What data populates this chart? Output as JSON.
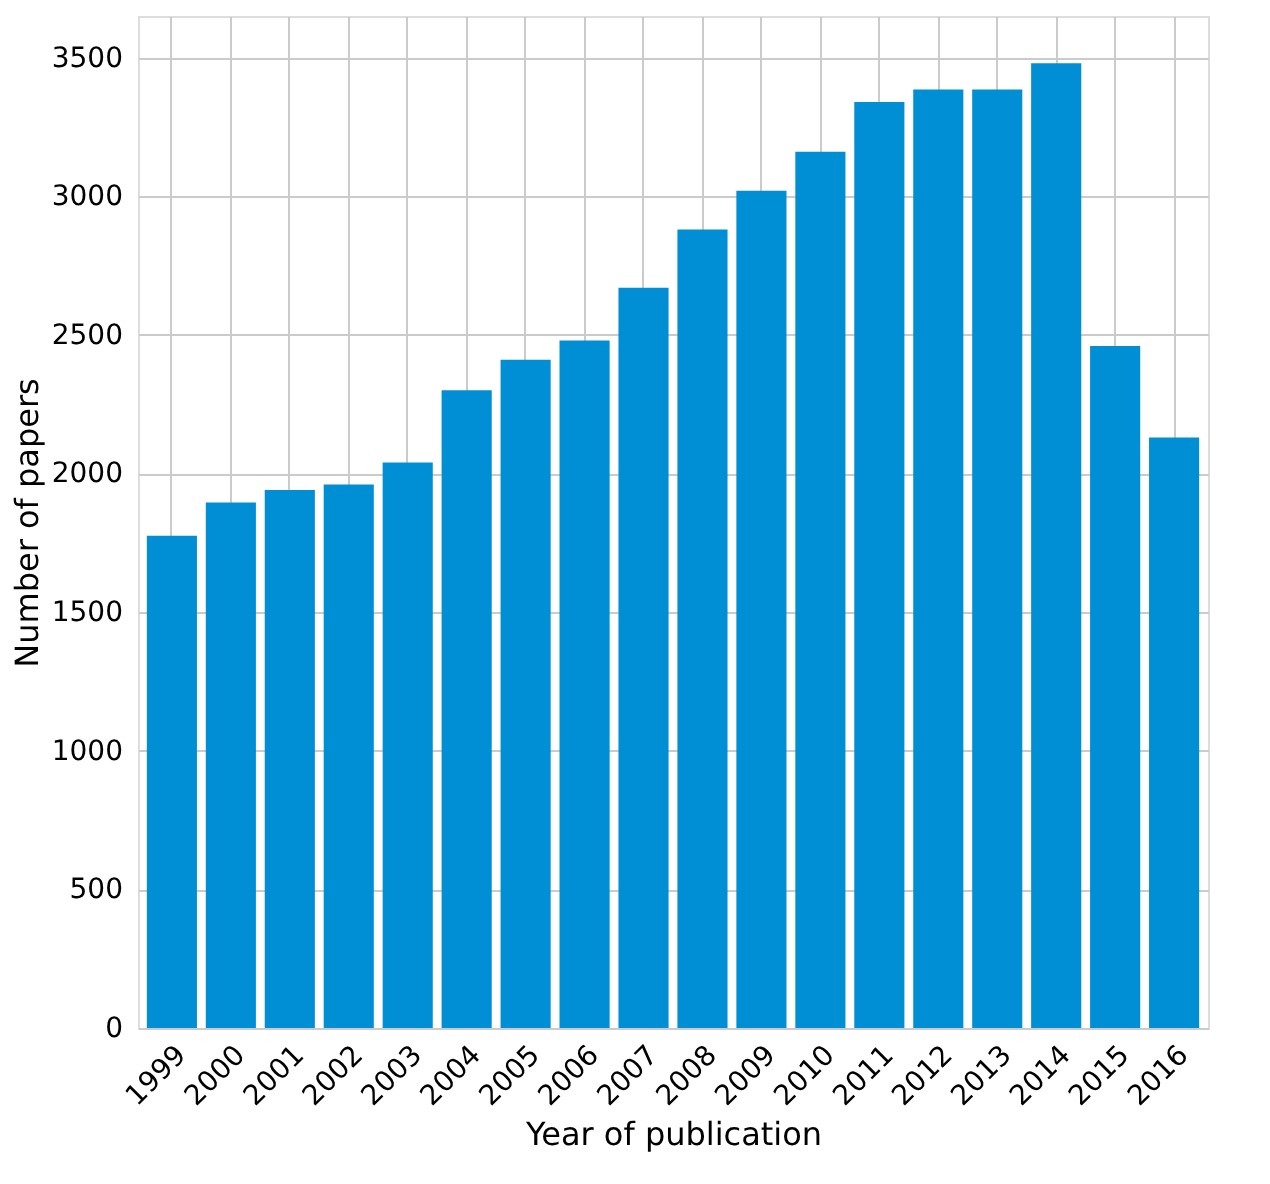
{
  "chart_data": {
    "type": "bar",
    "xlabel": "Year of publication",
    "ylabel": "Number of papers",
    "categories": [
      "1999",
      "2000",
      "2001",
      "2002",
      "2003",
      "2004",
      "2005",
      "2006",
      "2007",
      "2008",
      "2009",
      "2010",
      "2011",
      "2012",
      "2013",
      "2014",
      "2015",
      "2016"
    ],
    "values": [
      1775,
      1895,
      1940,
      1960,
      2040,
      2300,
      2410,
      2480,
      2670,
      2880,
      3020,
      3160,
      3340,
      3385,
      3385,
      3480,
      2460,
      2130
    ],
    "color": "#008fd5",
    "ylim": [
      0,
      3650
    ],
    "yticks": [
      0,
      500,
      1000,
      1500,
      2000,
      2500,
      3000,
      3500
    ],
    "grid": true
  }
}
